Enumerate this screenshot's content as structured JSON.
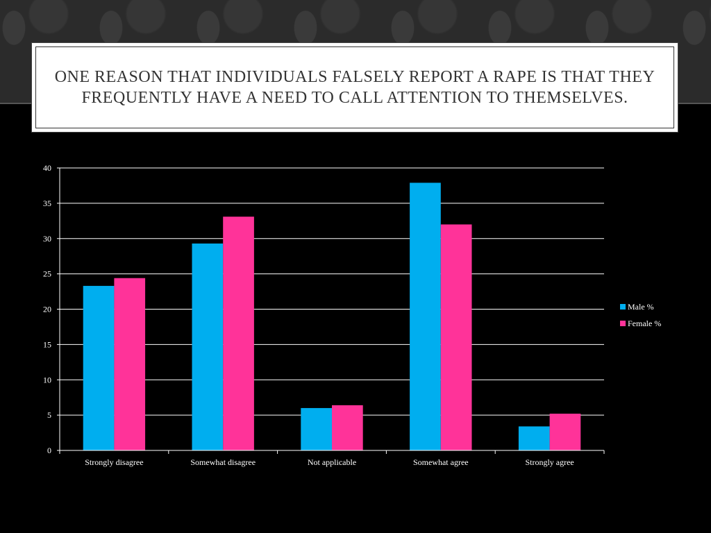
{
  "slide": {
    "title": "One reason that individuals falsely report a rape is that they frequently have a need to call attention to themselves."
  },
  "chart_data": {
    "type": "bar",
    "categories": [
      "Strongly disagree",
      "Somewhat disagree",
      "Not applicable",
      "Somewhat agree",
      "Strongly agree"
    ],
    "series": [
      {
        "name": "Male %",
        "values": [
          23.3,
          29.3,
          6.0,
          37.9,
          3.4
        ],
        "color": "#00AEEF"
      },
      {
        "name": "Female %",
        "values": [
          24.4,
          33.1,
          6.4,
          32.0,
          5.2
        ],
        "color": "#FF3399"
      }
    ],
    "title": "",
    "xlabel": "",
    "ylabel": "",
    "ylim": [
      0,
      40
    ],
    "yticks": [
      0,
      5,
      10,
      15,
      20,
      25,
      30,
      35,
      40
    ],
    "grid": true,
    "legend_position": "right"
  },
  "colors": {
    "background": "#000000",
    "title_text": "#333333",
    "gridline": "#ffffff"
  }
}
